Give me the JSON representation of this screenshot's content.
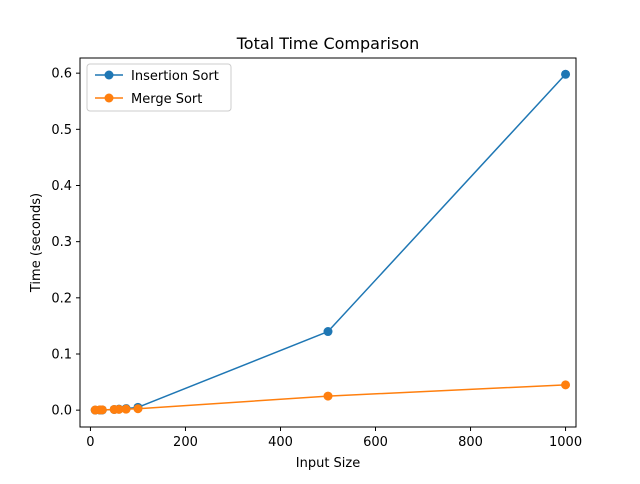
{
  "chart_data": {
    "type": "line",
    "title": "Total Time Comparison",
    "xlabel": "Input Size",
    "ylabel": "Time (seconds)",
    "xlim": [
      -22,
      1022
    ],
    "ylim": [
      -0.03,
      0.627
    ],
    "xticks": [
      0,
      200,
      400,
      600,
      800,
      1000
    ],
    "xtick_labels": [
      "0",
      "200",
      "400",
      "600",
      "800",
      "1000"
    ],
    "yticks": [
      0.0,
      0.1,
      0.2,
      0.3,
      0.4,
      0.5,
      0.6
    ],
    "ytick_labels": [
      "0.0",
      "0.1",
      "0.2",
      "0.3",
      "0.4",
      "0.5",
      "0.6"
    ],
    "grid": false,
    "legend_position": "upper-left",
    "x": [
      10,
      20,
      25,
      50,
      60,
      75,
      100,
      500,
      1000
    ],
    "series": [
      {
        "name": "Insertion Sort",
        "color": "#1f77b4",
        "marker": "circle",
        "values": [
          0.0001,
          0.0002,
          0.0003,
          0.0012,
          0.0018,
          0.0028,
          0.005,
          0.14,
          0.598
        ]
      },
      {
        "name": "Merge Sort",
        "color": "#ff7f0e",
        "marker": "circle",
        "values": [
          0.0002,
          0.0004,
          0.0005,
          0.0012,
          0.0014,
          0.0018,
          0.0025,
          0.025,
          0.045
        ]
      }
    ]
  }
}
